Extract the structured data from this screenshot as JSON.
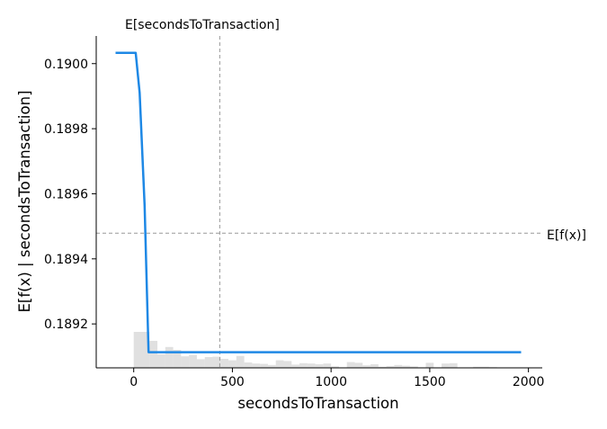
{
  "chart_data": {
    "type": "line",
    "xlabel": "secondsToTransaction",
    "ylabel": "E[f(x) | secondsToTransaction]",
    "xlim": [
      -190,
      2070
    ],
    "ylim": [
      0.189065,
      0.190085
    ],
    "x_ticks": [
      0,
      500,
      1000,
      1500,
      2000
    ],
    "x_tick_labels": [
      "0",
      "500",
      "1000",
      "1500",
      "2000"
    ],
    "y_ticks": [
      0.1892,
      0.1894,
      0.1896,
      0.1898,
      0.19
    ],
    "y_tick_labels": [
      "0.1892",
      "0.1894",
      "0.1896",
      "0.1898",
      "0.1900"
    ],
    "grid": false,
    "series": [
      {
        "color": "#1e88e5",
        "x": [
          -92,
          10,
          30,
          55,
          75,
          100,
          200,
          400,
          600,
          800,
          1000,
          1200,
          1400,
          1600,
          1800,
          1963
        ],
        "y": [
          0.190033,
          0.190033,
          0.18991,
          0.189565,
          0.189113,
          0.189113,
          0.189113,
          0.189113,
          0.189113,
          0.189113,
          0.189113,
          0.189113,
          0.189113,
          0.189113,
          0.189113,
          0.189113
        ]
      }
    ],
    "reference_lines": {
      "vertical": {
        "x": 436,
        "label": "E[secondsToTransaction]"
      },
      "horizontal": {
        "y": 0.189479,
        "label": "E[f(x)]"
      }
    },
    "histogram": {
      "color": "#cccccc",
      "bin_edges": [
        0,
        40,
        80,
        120,
        160,
        200,
        240,
        280,
        320,
        360,
        400,
        440,
        480,
        520,
        560,
        600,
        640,
        680,
        720,
        760,
        800,
        840,
        880,
        920,
        960,
        1000,
        1040,
        1080,
        1120,
        1160,
        1200,
        1240,
        1280,
        1320,
        1360,
        1400,
        1440,
        1480,
        1520,
        1560,
        1600,
        1640,
        1680,
        1720,
        1760,
        1800,
        1840,
        1880,
        1920,
        1960
      ],
      "relative_heights": [
        1.0,
        1.0,
        0.75,
        0.38,
        0.58,
        0.5,
        0.32,
        0.36,
        0.24,
        0.3,
        0.31,
        0.25,
        0.21,
        0.33,
        0.15,
        0.12,
        0.11,
        0.08,
        0.21,
        0.19,
        0.09,
        0.13,
        0.12,
        0.1,
        0.12,
        0.04,
        0.0,
        0.16,
        0.14,
        0.07,
        0.1,
        0.03,
        0.05,
        0.08,
        0.06,
        0.04,
        0.0,
        0.14,
        0.0,
        0.12,
        0.13,
        0.0,
        0.0,
        0.03,
        0.03,
        0.02,
        0.0,
        0.0,
        0.0
      ]
    }
  }
}
